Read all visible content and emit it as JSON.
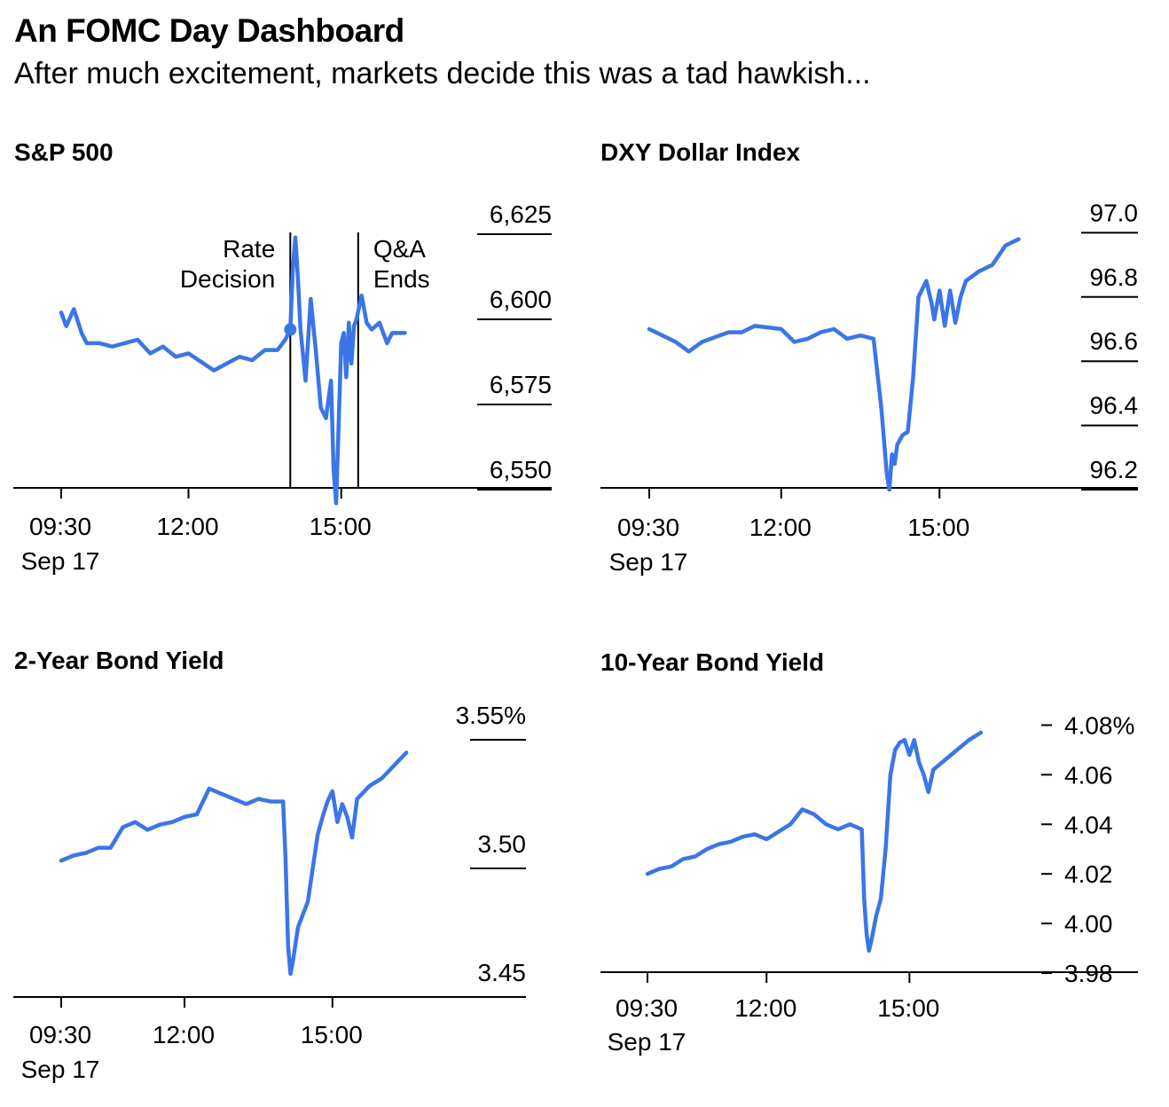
{
  "header": {
    "title": "An FOMC Day Dashboard",
    "subtitle": "After much excitement, markets decide this was a tad hawkish..."
  },
  "colors": {
    "line": "#3b75e8",
    "axis": "#000000"
  },
  "chart_data": [
    {
      "id": "sp500",
      "type": "line",
      "title": "S&P 500",
      "x_ticks": [
        "09:30",
        "12:00",
        "15:00"
      ],
      "x_subtick": "Sep 17",
      "y_ticks": [
        "6,625",
        "6,600",
        "6,575",
        "6,550"
      ],
      "y_tick_values": [
        6625,
        6600,
        6575,
        6550
      ],
      "ylim": [
        6544,
        6635
      ],
      "annotations": [
        {
          "label_lines": [
            "Rate",
            "Decision"
          ],
          "time": "14:00"
        },
        {
          "label_lines": [
            "Q&A",
            "Ends"
          ],
          "time": "15:20"
        }
      ],
      "x": [
        9.5,
        9.6,
        9.75,
        9.9,
        10.0,
        10.25,
        10.5,
        11.0,
        11.25,
        11.5,
        11.75,
        12.0,
        12.5,
        13.0,
        13.25,
        13.5,
        13.75,
        13.9,
        14.0,
        14.05,
        14.1,
        14.15,
        14.2,
        14.3,
        14.4,
        14.5,
        14.6,
        14.7,
        14.8,
        14.85,
        14.9,
        15.0,
        15.05,
        15.1,
        15.15,
        15.2,
        15.25,
        15.3,
        15.4,
        15.5,
        15.6,
        15.75,
        15.9,
        16.0,
        16.25
      ],
      "values": [
        6602,
        6598,
        6603,
        6596,
        6593,
        6593,
        6592,
        6594,
        6590,
        6592,
        6589,
        6590,
        6585,
        6589,
        6588,
        6591,
        6591,
        6594,
        6597,
        6615,
        6624,
        6612,
        6597,
        6582,
        6606,
        6591,
        6574,
        6571,
        6582,
        6556,
        6546,
        6593,
        6596,
        6583,
        6599,
        6587,
        6598,
        6600,
        6607,
        6599,
        6597,
        6599,
        6593,
        6596,
        6596
      ]
    },
    {
      "id": "dxy",
      "type": "line",
      "title": "DXY Dollar Index",
      "x_ticks": [
        "09:30",
        "12:00",
        "15:00"
      ],
      "x_subtick": "Sep 17",
      "y_ticks": [
        "97.0",
        "96.8",
        "96.6",
        "96.4",
        "96.2"
      ],
      "y_tick_values": [
        97.0,
        96.8,
        96.6,
        96.4,
        96.2
      ],
      "ylim": [
        96.13,
        97.05
      ],
      "x": [
        9.5,
        9.75,
        10.0,
        10.25,
        10.5,
        11.0,
        11.25,
        11.5,
        12.0,
        12.25,
        12.5,
        12.75,
        13.0,
        13.25,
        13.5,
        13.75,
        13.9,
        14.0,
        14.05,
        14.1,
        14.15,
        14.2,
        14.3,
        14.4,
        14.5,
        14.6,
        14.75,
        14.85,
        14.9,
        15.0,
        15.1,
        15.2,
        15.3,
        15.4,
        15.5,
        15.75,
        16.0,
        16.25,
        16.5
      ],
      "values": [
        96.7,
        96.68,
        96.66,
        96.63,
        96.66,
        96.69,
        96.69,
        96.71,
        96.7,
        96.66,
        96.67,
        96.69,
        96.7,
        96.67,
        96.68,
        96.67,
        96.45,
        96.25,
        96.2,
        96.31,
        96.28,
        96.34,
        96.37,
        96.38,
        96.55,
        96.8,
        96.85,
        96.78,
        96.73,
        96.82,
        96.71,
        96.82,
        96.72,
        96.8,
        96.85,
        96.88,
        96.9,
        96.96,
        96.98
      ]
    },
    {
      "id": "two_year",
      "type": "line",
      "title": "2-Year Bond Yield",
      "x_ticks": [
        "09:30",
        "12:00",
        "15:00"
      ],
      "x_subtick": "Sep 17",
      "y_ticks": [
        "3.55%",
        "3.50",
        "3.45"
      ],
      "y_tick_values": [
        3.55,
        3.5,
        3.45
      ],
      "ylim": [
        3.441,
        3.555
      ],
      "x": [
        9.5,
        9.75,
        10.0,
        10.25,
        10.5,
        10.75,
        11.0,
        11.25,
        11.5,
        11.75,
        12.0,
        12.25,
        12.5,
        12.75,
        13.0,
        13.25,
        13.5,
        13.75,
        14.0,
        14.05,
        14.1,
        14.15,
        14.2,
        14.3,
        14.4,
        14.5,
        14.6,
        14.7,
        14.8,
        14.9,
        15.0,
        15.1,
        15.2,
        15.3,
        15.4,
        15.5,
        15.75,
        16.0,
        16.25,
        16.5
      ],
      "values": [
        3.503,
        3.505,
        3.506,
        3.508,
        3.508,
        3.516,
        3.518,
        3.515,
        3.517,
        3.518,
        3.52,
        3.521,
        3.531,
        3.529,
        3.527,
        3.525,
        3.527,
        3.526,
        3.526,
        3.503,
        3.47,
        3.459,
        3.464,
        3.477,
        3.482,
        3.487,
        3.5,
        3.513,
        3.52,
        3.526,
        3.53,
        3.518,
        3.525,
        3.52,
        3.512,
        3.527,
        3.532,
        3.535,
        3.54,
        3.545
      ]
    },
    {
      "id": "ten_year",
      "type": "line",
      "title": "10-Year Bond Yield",
      "x_ticks": [
        "09:30",
        "12:00",
        "15:00"
      ],
      "x_subtick": "Sep 17",
      "y_ticks": [
        "4.08%",
        "4.06",
        "4.04",
        "4.02",
        "4.00",
        "3.98"
      ],
      "y_tick_values": [
        4.08,
        4.06,
        4.04,
        4.02,
        4.0,
        3.98
      ],
      "ylim": [
        3.98,
        4.08
      ],
      "x": [
        9.5,
        9.75,
        10.0,
        10.25,
        10.5,
        10.75,
        11.0,
        11.25,
        11.5,
        11.75,
        12.0,
        12.25,
        12.5,
        12.75,
        13.0,
        13.25,
        13.5,
        13.75,
        14.0,
        14.05,
        14.1,
        14.15,
        14.2,
        14.3,
        14.4,
        14.5,
        14.6,
        14.7,
        14.8,
        14.9,
        15.0,
        15.1,
        15.2,
        15.3,
        15.4,
        15.5,
        15.75,
        16.0,
        16.25,
        16.5
      ],
      "values": [
        4.02,
        4.022,
        4.023,
        4.026,
        4.027,
        4.03,
        4.032,
        4.033,
        4.035,
        4.036,
        4.034,
        4.037,
        4.04,
        4.046,
        4.044,
        4.04,
        4.038,
        4.04,
        4.038,
        4.01,
        3.996,
        3.989,
        3.993,
        4.003,
        4.01,
        4.03,
        4.06,
        4.07,
        4.073,
        4.074,
        4.068,
        4.074,
        4.065,
        4.06,
        4.053,
        4.062,
        4.066,
        4.07,
        4.074,
        4.077
      ]
    }
  ]
}
